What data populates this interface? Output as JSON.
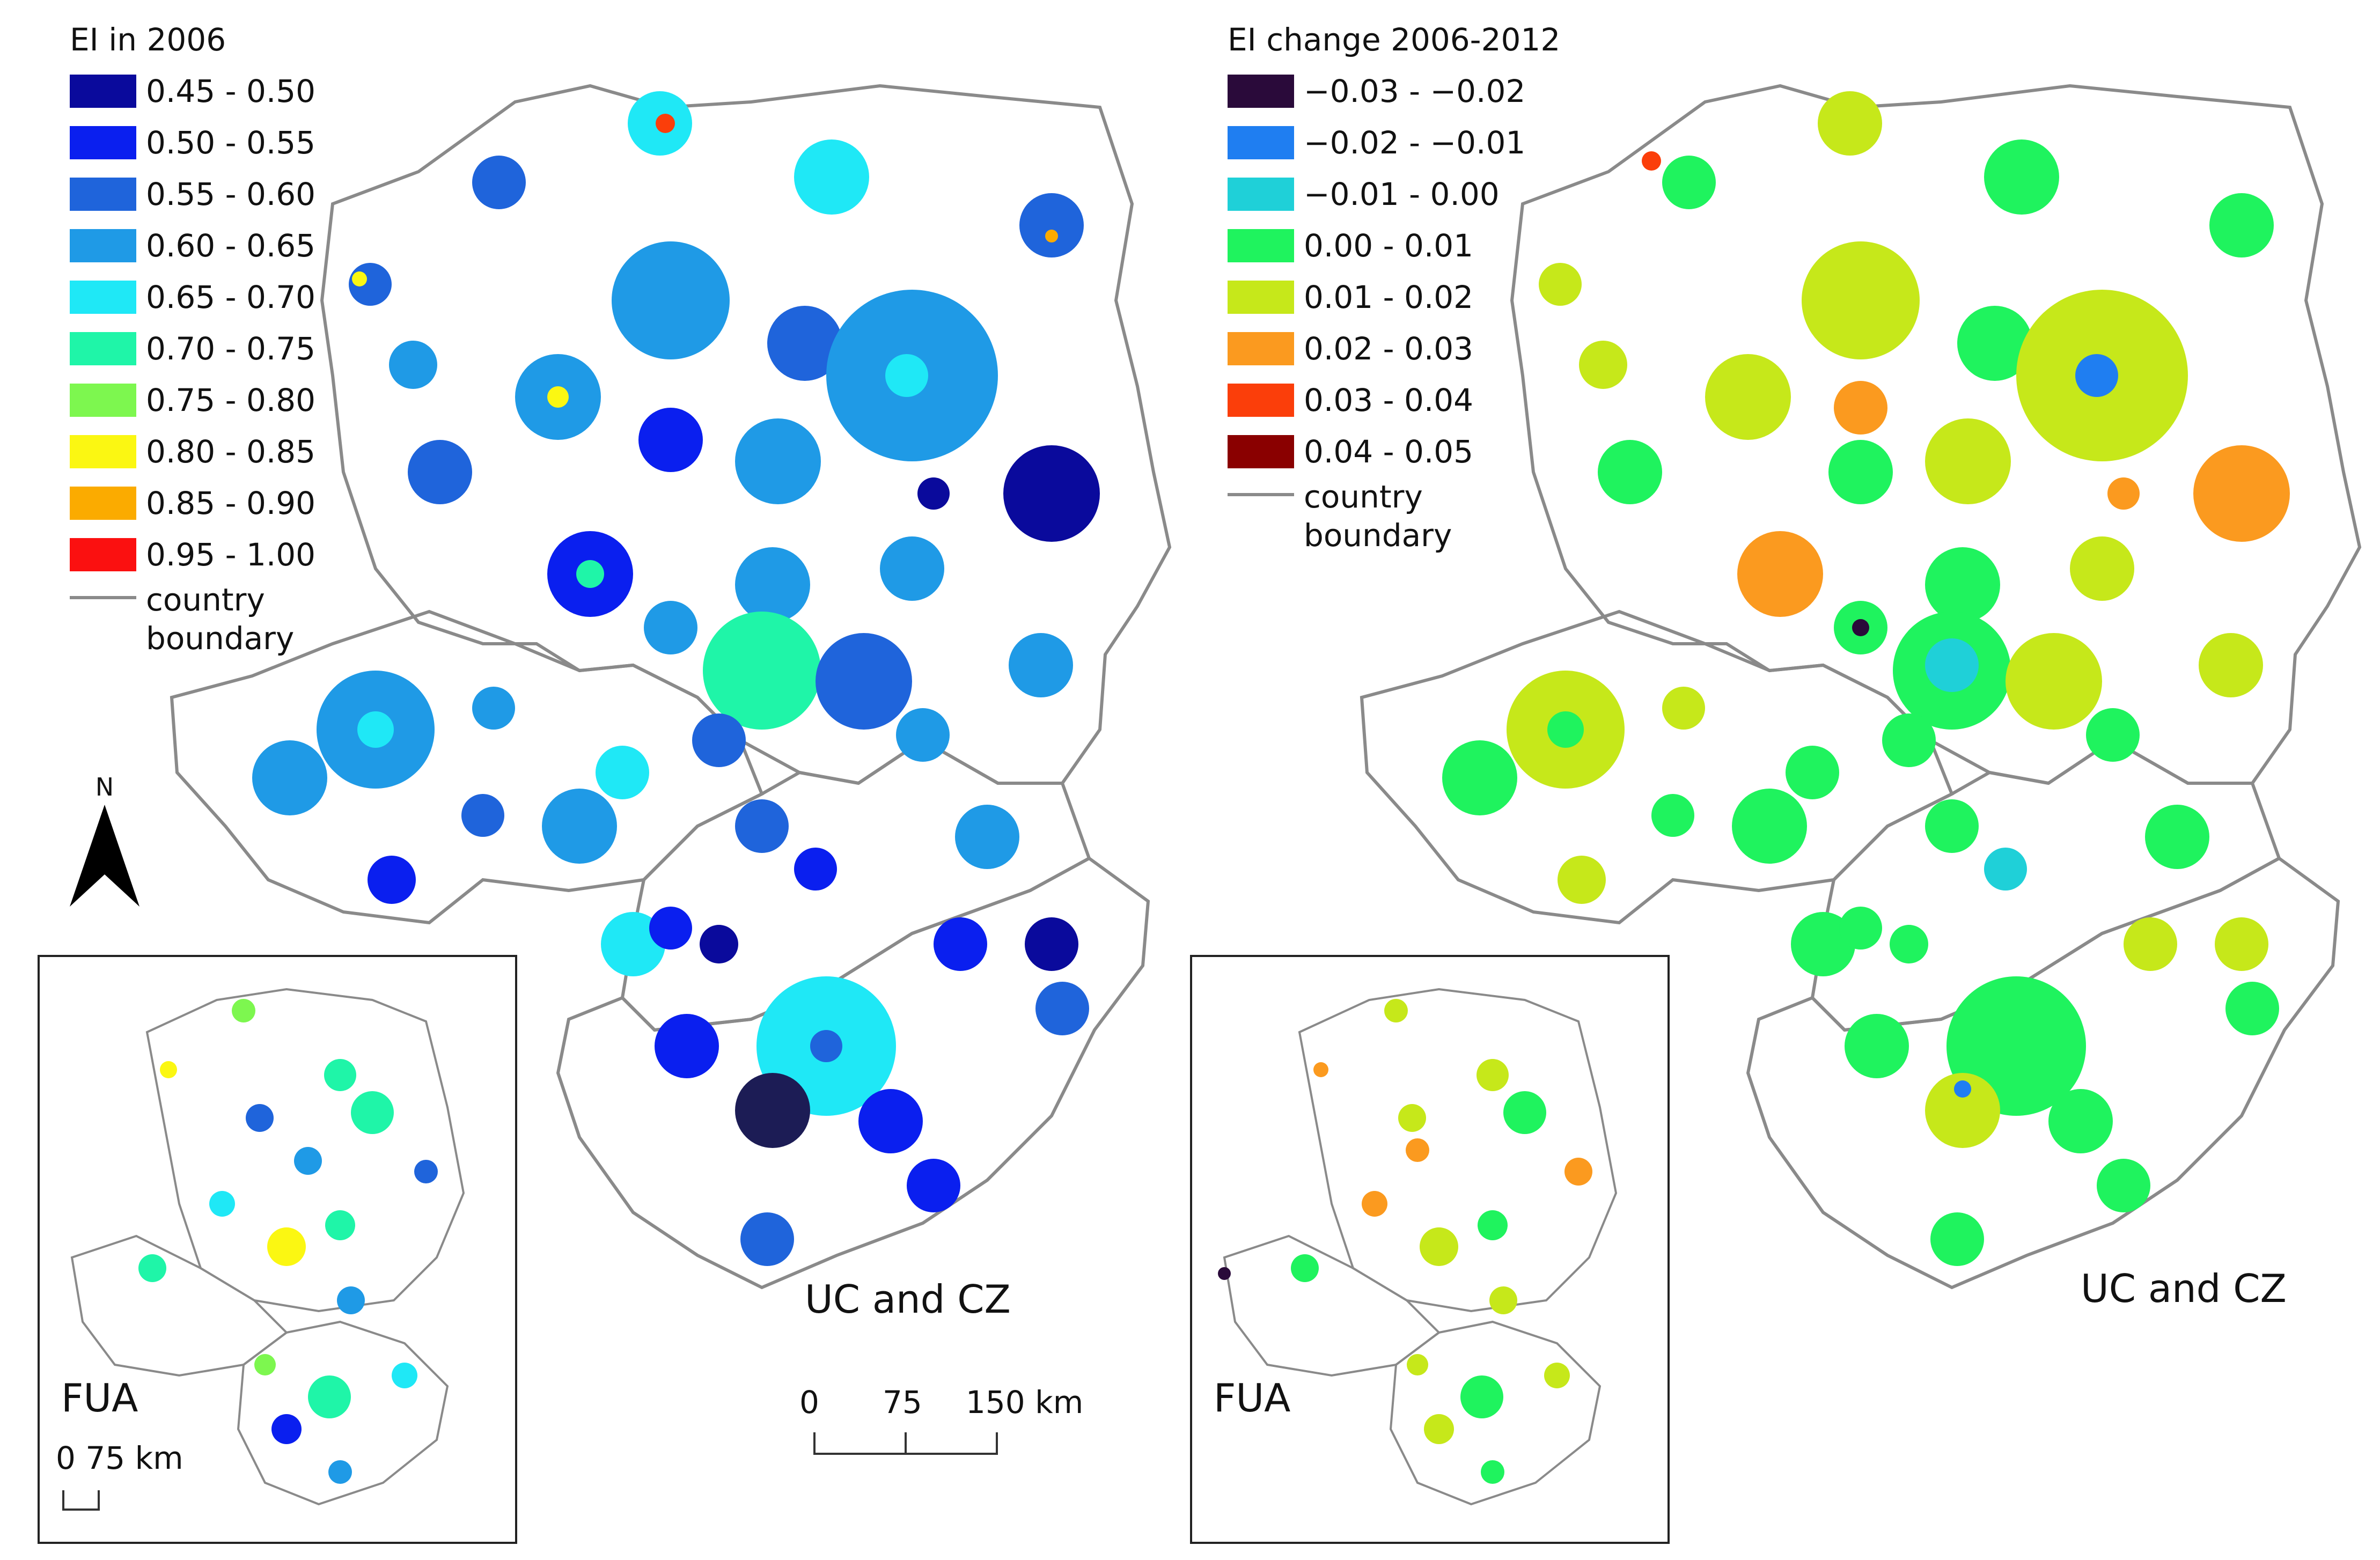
{
  "left_panel": {
    "legend_title": "EI in 2006",
    "legend": [
      {
        "label": "0.45 - 0.50",
        "color": "#0a0a9c"
      },
      {
        "label": "0.50 - 0.55",
        "color": "#0a1fef"
      },
      {
        "label": "0.55 - 0.60",
        "color": "#1f64db"
      },
      {
        "label": "0.60 - 0.65",
        "color": "#1f9ae6"
      },
      {
        "label": "0.65 - 0.70",
        "color": "#1fe8f6"
      },
      {
        "label": "0.70 - 0.75",
        "color": "#1ff5a8"
      },
      {
        "label": "0.75 - 0.80",
        "color": "#7df74f"
      },
      {
        "label": "0.80 - 0.85",
        "color": "#fbf712"
      },
      {
        "label": "0.85 - 0.90",
        "color": "#fbab00"
      },
      {
        "label": "0.95 - 1.00",
        "color": "#fb1010"
      }
    ],
    "boundary_label": "country boundary",
    "title": "UC and CZ",
    "inset_label": "FUA",
    "north_label": "N",
    "scale_labels": [
      "0",
      "75",
      "150 km"
    ],
    "inset_scale_label": "0 75 km"
  },
  "right_panel": {
    "legend_title": "EI change 2006-2012",
    "legend": [
      {
        "label": "−0.03 - −0.02",
        "color": "#2a0a3a"
      },
      {
        "label": "−0.02 - −0.01",
        "color": "#1f7ef1"
      },
      {
        "label": "−0.01 - 0.00",
        "color": "#1fd0d8"
      },
      {
        "label": "0.00 - 0.01",
        "color": "#1ff35e"
      },
      {
        "label": "0.01 - 0.02",
        "color": "#c6e81a"
      },
      {
        "label": "0.02 - 0.03",
        "color": "#fb9a1f"
      },
      {
        "label": "0.03 - 0.04",
        "color": "#fb3e0a"
      },
      {
        "label": "0.04 - 0.05",
        "color": "#8a0000"
      }
    ],
    "boundary_label": "country boundary",
    "title": "UC and CZ",
    "inset_label": "FUA"
  },
  "colors": {
    "boundary": "#8a8a8a",
    "inset_border": "#222222"
  },
  "icons": {
    "north_arrow": "north-arrow-icon"
  }
}
